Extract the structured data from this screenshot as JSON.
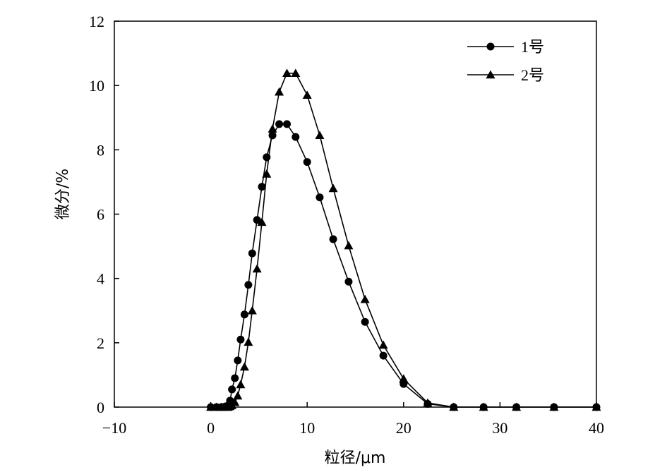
{
  "chart_data": {
    "type": "line",
    "title": "",
    "xlabel": "粒径/μm",
    "ylabel": "微分/%",
    "xlim": [
      -10,
      40
    ],
    "ylim": [
      0,
      12
    ],
    "x_ticks": [
      "−10",
      "0",
      "10",
      "20",
      "30",
      "40"
    ],
    "y_ticks": [
      "0",
      "2",
      "4",
      "6",
      "8",
      "10",
      "12"
    ],
    "grid": false,
    "legend_position": "top-right",
    "series": [
      {
        "name": "1号",
        "marker": "circle",
        "color": "#000000",
        "x": [
          0,
          0.6,
          1.1,
          1.5,
          1.8,
          2.0,
          2.2,
          2.5,
          2.8,
          3.1,
          3.5,
          3.9,
          4.3,
          4.8,
          5.3,
          5.8,
          6.4,
          7.1,
          7.9,
          8.8,
          10.0,
          11.3,
          12.7,
          14.3,
          16.0,
          17.9,
          20.0,
          22.5,
          25.2,
          28.3,
          31.7,
          35.6,
          40.0
        ],
        "y": [
          0,
          0,
          0,
          0.02,
          0.05,
          0.2,
          0.55,
          0.9,
          1.45,
          2.1,
          2.88,
          3.8,
          4.78,
          5.82,
          6.85,
          7.77,
          8.45,
          8.8,
          8.8,
          8.4,
          7.62,
          6.52,
          5.22,
          3.9,
          2.65,
          1.6,
          0.72,
          0.1,
          0,
          0,
          0,
          0,
          0
        ]
      },
      {
        "name": "2号",
        "marker": "triangle",
        "color": "#000000",
        "x": [
          0,
          0.6,
          1.1,
          1.5,
          1.8,
          2.0,
          2.2,
          2.5,
          2.8,
          3.1,
          3.5,
          3.9,
          4.3,
          4.8,
          5.3,
          5.8,
          6.4,
          7.1,
          7.9,
          8.8,
          10.0,
          11.3,
          12.7,
          14.3,
          16.0,
          17.9,
          20.0,
          22.5,
          25.2,
          28.3,
          31.7,
          35.6,
          40.0
        ],
        "y": [
          0,
          0,
          0,
          0,
          0,
          0.02,
          0.05,
          0.15,
          0.35,
          0.7,
          1.25,
          2.02,
          3.0,
          4.3,
          5.75,
          7.25,
          8.65,
          9.8,
          10.38,
          10.38,
          9.7,
          8.45,
          6.8,
          5.02,
          3.35,
          1.93,
          0.88,
          0.13,
          0,
          0,
          0,
          0,
          0
        ]
      }
    ]
  }
}
